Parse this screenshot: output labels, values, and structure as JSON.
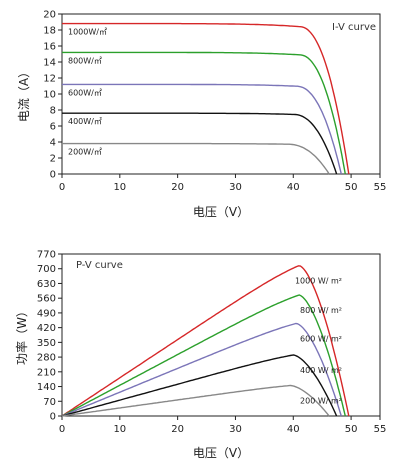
{
  "chart_data": [
    {
      "type": "line",
      "title": "I-V curve",
      "xlabel": "电压（V）",
      "ylabel": "电流（A）",
      "xlim": [
        0,
        55
      ],
      "ylim": [
        0,
        20
      ],
      "xticks": [
        "0",
        "10",
        "20",
        "30",
        "40",
        "50",
        "55"
      ],
      "yticks": [
        "0",
        "2",
        "4",
        "6",
        "8",
        "10",
        "12",
        "14",
        "16",
        "18",
        "20"
      ],
      "grid": false,
      "series": [
        {
          "name": "1000W/㎡",
          "color": "#d62728",
          "isc": 18.8,
          "voc": 49.6,
          "knee": 41
        },
        {
          "name": "800W/㎡",
          "color": "#2ca02c",
          "isc": 15.2,
          "voc": 49.0,
          "knee": 41
        },
        {
          "name": "600W/㎡",
          "color": "#7b75b8",
          "isc": 11.2,
          "voc": 48.3,
          "knee": 40.5
        },
        {
          "name": "400W/㎡",
          "color": "#111111",
          "isc": 7.6,
          "voc": 47.5,
          "knee": 40
        },
        {
          "name": "200W/㎡",
          "color": "#888888",
          "isc": 3.8,
          "voc": 46.2,
          "knee": 39
        }
      ]
    },
    {
      "type": "line",
      "title": "P-V curve",
      "xlabel": "电压（V）",
      "ylabel": "功率（W）",
      "xlim": [
        0,
        55
      ],
      "ylim": [
        0,
        770
      ],
      "xticks": [
        "0",
        "10",
        "20",
        "30",
        "40",
        "50",
        "55"
      ],
      "yticks": [
        "0",
        "70",
        "140",
        "210",
        "280",
        "350",
        "420",
        "490",
        "560",
        "630",
        "700",
        "770"
      ],
      "grid": false,
      "series": [
        {
          "name": "1000 W/ m²",
          "color": "#d62728",
          "pmax": 715,
          "vmp": 41,
          "voc": 49.6
        },
        {
          "name": "800 W/ m²",
          "color": "#2ca02c",
          "pmax": 575,
          "vmp": 41,
          "voc": 49.0
        },
        {
          "name": "600 W/ m²",
          "color": "#7b75b8",
          "pmax": 440,
          "vmp": 40.5,
          "voc": 48.3
        },
        {
          "name": "400 W/ m²",
          "color": "#111111",
          "pmax": 290,
          "vmp": 40,
          "voc": 47.5
        },
        {
          "name": "200 W/ m²",
          "color": "#888888",
          "pmax": 145,
          "vmp": 39.5,
          "voc": 46.2
        }
      ]
    }
  ]
}
